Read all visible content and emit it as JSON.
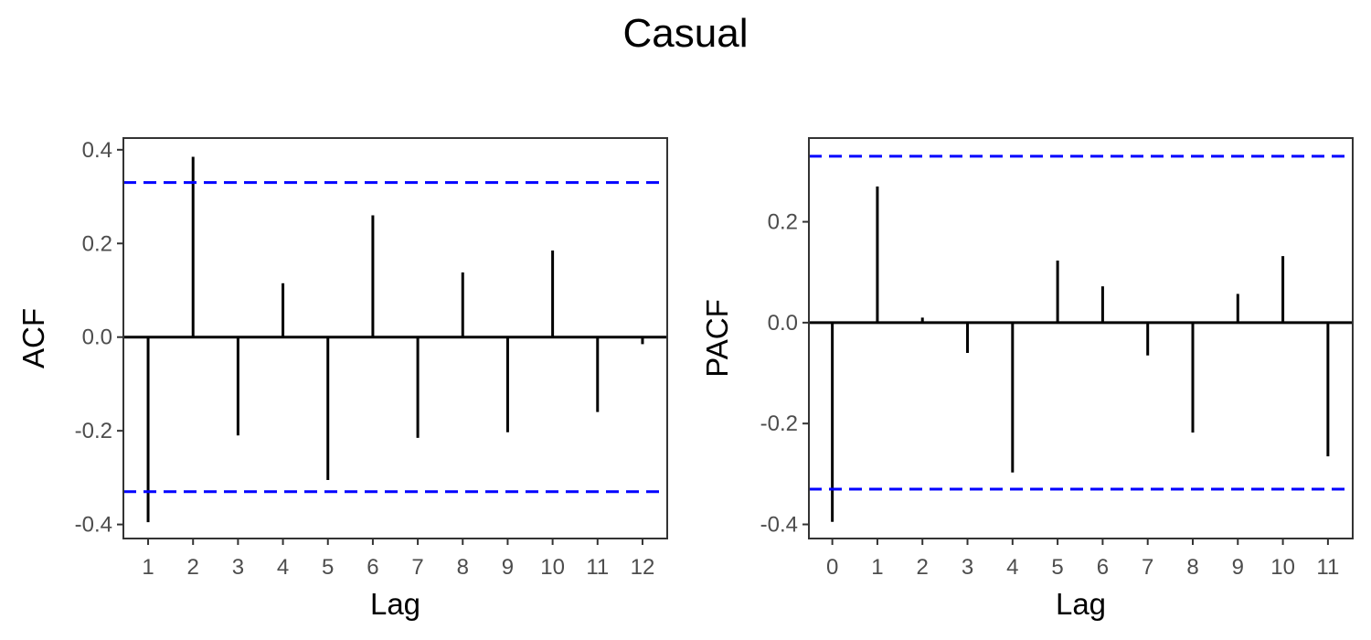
{
  "title": "Casual",
  "chart_data": [
    {
      "type": "bar",
      "subtype": "acf-stem",
      "xlabel": "Lag",
      "ylabel": "ACF",
      "x": [
        1,
        2,
        3,
        4,
        5,
        6,
        7,
        8,
        9,
        10,
        11,
        12
      ],
      "values": [
        -0.395,
        0.385,
        -0.21,
        0.115,
        -0.305,
        0.26,
        -0.215,
        0.138,
        -0.203,
        0.185,
        -0.16,
        -0.015
      ],
      "x_ticks": [
        "1",
        "2",
        "3",
        "4",
        "5",
        "6",
        "7",
        "8",
        "9",
        "10",
        "11",
        "12"
      ],
      "y_ticks": [
        -0.4,
        -0.2,
        0.0,
        0.2,
        0.4
      ],
      "y_tick_labels": [
        "-0.4",
        "-0.2",
        "0.0",
        "0.2",
        "0.4"
      ],
      "xlim": [
        0.45,
        12.55
      ],
      "ylim": [
        -0.43,
        0.425
      ],
      "confidence_bounds": [
        0.33,
        -0.33
      ],
      "grid": false,
      "colors": {
        "bars": "#000000",
        "bounds": "#0000ff",
        "zero_line": "#000000"
      }
    },
    {
      "type": "bar",
      "subtype": "pacf-stem",
      "xlabel": "Lag",
      "ylabel": "PACF",
      "x": [
        0,
        1,
        2,
        3,
        4,
        5,
        6,
        7,
        8,
        9,
        10,
        11
      ],
      "values": [
        -0.395,
        0.27,
        0.01,
        -0.06,
        -0.297,
        0.123,
        0.072,
        -0.065,
        -0.218,
        0.057,
        0.132,
        -0.265
      ],
      "x_ticks": [
        "0",
        "1",
        "2",
        "3",
        "4",
        "5",
        "6",
        "7",
        "8",
        "9",
        "10",
        "11"
      ],
      "y_ticks": [
        -0.4,
        -0.2,
        0.0,
        0.2
      ],
      "y_tick_labels": [
        "-0.4",
        "-0.2",
        "0.0",
        "0.2"
      ],
      "xlim": [
        -0.52,
        11.55
      ],
      "ylim": [
        -0.428,
        0.366
      ],
      "confidence_bounds": [
        0.33,
        -0.33
      ],
      "grid": false,
      "colors": {
        "bars": "#000000",
        "bounds": "#0000ff",
        "zero_line": "#000000"
      }
    }
  ]
}
